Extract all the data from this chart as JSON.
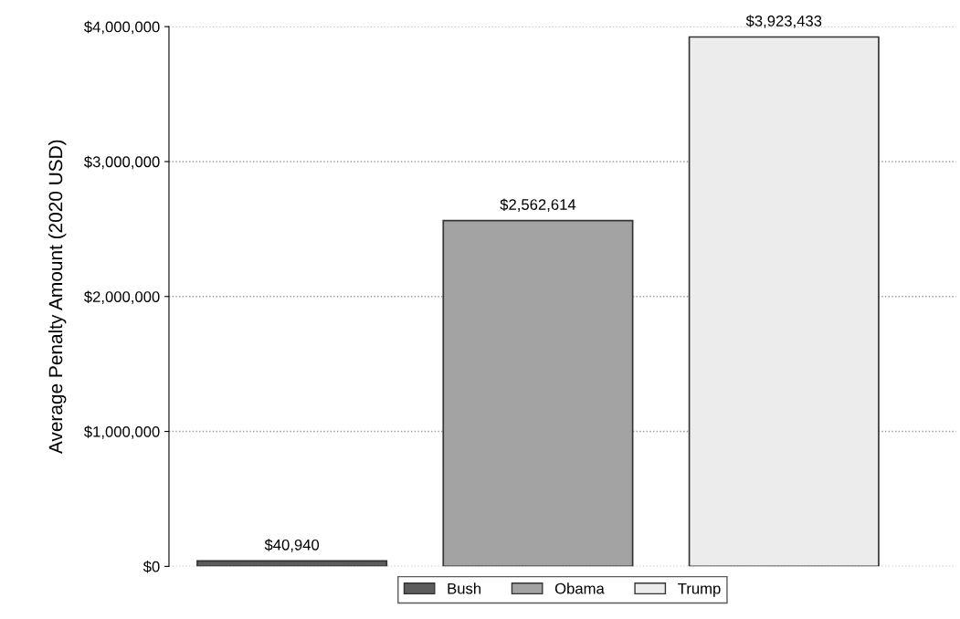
{
  "chart_data": {
    "type": "bar",
    "ylabel": "Average Penalty Amount (2020 USD)",
    "categories": [
      null,
      null,
      null
    ],
    "series": [
      {
        "name": "Bush",
        "color": "#5c5c5c",
        "values": [
          40940,
          null,
          null
        ],
        "value_labels": [
          "$40,940",
          null,
          null
        ]
      },
      {
        "name": "Obama",
        "color": "#a3a3a3",
        "values": [
          null,
          2562614,
          null
        ],
        "value_labels": [
          null,
          "$2,562,614",
          null
        ]
      },
      {
        "name": "Trump",
        "color": "#ececec",
        "values": [
          null,
          null,
          3923433
        ],
        "value_labels": [
          null,
          null,
          "$3,923,433"
        ]
      }
    ],
    "ylim": [
      0,
      4000000
    ],
    "yticks": [
      {
        "value": 0,
        "label": "$0"
      },
      {
        "value": 1000000,
        "label": "$1,000,000"
      },
      {
        "value": 2000000,
        "label": "$2,000,000"
      },
      {
        "value": 3000000,
        "label": "$3,000,000"
      },
      {
        "value": 4000000,
        "label": "$4,000,000"
      }
    ],
    "grid": "y",
    "legend": "bottom"
  }
}
